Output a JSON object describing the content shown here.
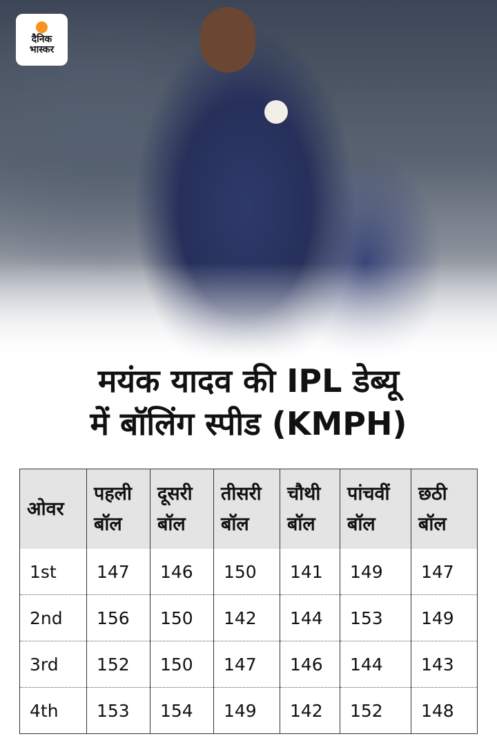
{
  "brand": {
    "logo_text_line1": "दैनिक",
    "logo_text_line2": "भास्कर",
    "accent": "#f7931e"
  },
  "title": {
    "line1": "मयंक यादव की IPL डेब्यू",
    "line2": "में बॉलिंग स्पीड (KMPH)"
  },
  "table": {
    "headers": [
      {
        "l1": "ओवर",
        "l2": ""
      },
      {
        "l1": "पहली",
        "l2": "बॉल"
      },
      {
        "l1": "दूसरी",
        "l2": "बॉल"
      },
      {
        "l1": "तीसरी",
        "l2": "बॉल"
      },
      {
        "l1": "चौथी",
        "l2": "बॉल"
      },
      {
        "l1": "पांचवीं",
        "l2": "बॉल"
      },
      {
        "l1": "छठी",
        "l2": "बॉल"
      }
    ],
    "rows": [
      [
        "1st",
        "147",
        "146",
        "150",
        "141",
        "149",
        "147"
      ],
      [
        "2nd",
        "156",
        "150",
        "142",
        "144",
        "153",
        "149"
      ],
      [
        "3rd",
        "152",
        "150",
        "147",
        "146",
        "144",
        "143"
      ],
      [
        "4th",
        "153",
        "154",
        "149",
        "142",
        "152",
        "148"
      ]
    ]
  }
}
